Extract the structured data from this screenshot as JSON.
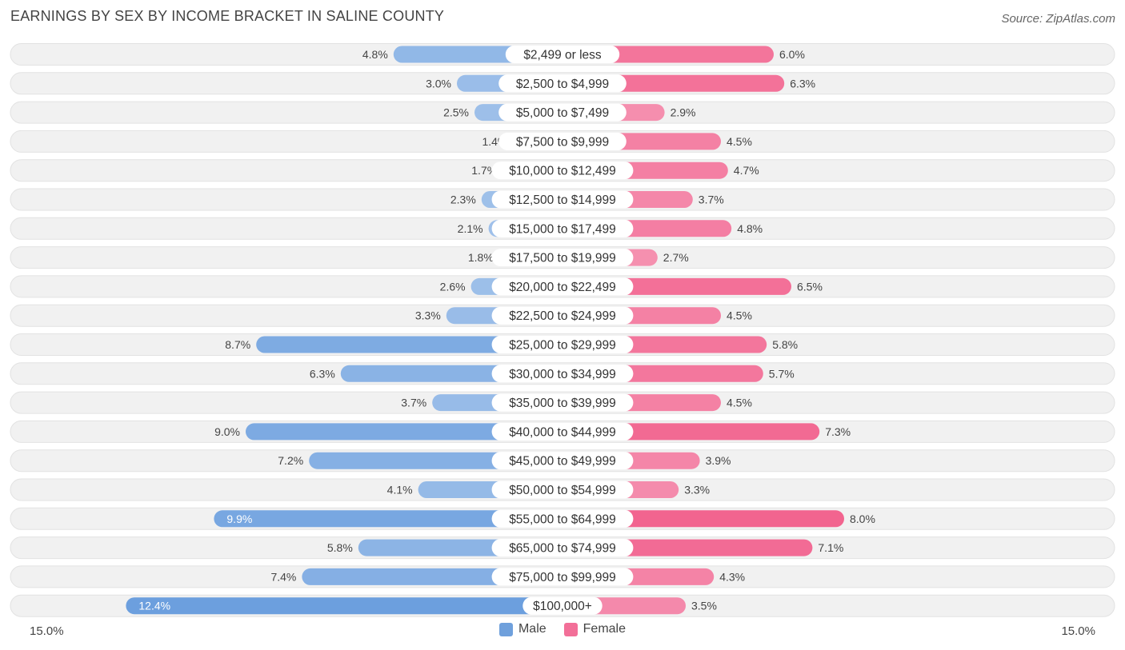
{
  "title": "EARNINGS BY SEX BY INCOME BRACKET IN SALINE COUNTY",
  "source": "Source: ZipAtlas.com",
  "colors": {
    "male": "#7aa7e0",
    "male_light": "#a9c7ec",
    "female": "#f26f98",
    "female_light": "#f6a6c0",
    "row_bg": "#eeeeee"
  },
  "chart_data": {
    "type": "bar",
    "orientation": "horizontal-diverging",
    "title": "EARNINGS BY SEX BY INCOME BRACKET IN SALINE COUNTY",
    "categories": [
      "$2,499 or less",
      "$2,500 to $4,999",
      "$5,000 to $7,499",
      "$7,500 to $9,999",
      "$10,000 to $12,499",
      "$12,500 to $14,999",
      "$15,000 to $17,499",
      "$17,500 to $19,999",
      "$20,000 to $22,499",
      "$22,500 to $24,999",
      "$25,000 to $29,999",
      "$30,000 to $34,999",
      "$35,000 to $39,999",
      "$40,000 to $44,999",
      "$45,000 to $49,999",
      "$50,000 to $54,999",
      "$55,000 to $64,999",
      "$65,000 to $74,999",
      "$75,000 to $99,999",
      "$100,000+"
    ],
    "series": [
      {
        "name": "Male",
        "values": [
          4.8,
          3.0,
          2.5,
          1.4,
          1.7,
          2.3,
          2.1,
          1.8,
          2.6,
          3.3,
          8.7,
          6.3,
          3.7,
          9.0,
          7.2,
          4.1,
          9.9,
          5.8,
          7.4,
          12.4
        ],
        "labels": [
          "4.8%",
          "3.0%",
          "2.5%",
          "1.4%",
          "1.7%",
          "2.3%",
          "2.1%",
          "1.8%",
          "2.6%",
          "3.3%",
          "8.7%",
          "6.3%",
          "3.7%",
          "9.0%",
          "7.2%",
          "4.1%",
          "9.9%",
          "5.8%",
          "7.4%",
          "12.4%"
        ]
      },
      {
        "name": "Female",
        "values": [
          6.0,
          6.3,
          2.9,
          4.5,
          4.7,
          3.7,
          4.8,
          2.7,
          6.5,
          4.5,
          5.8,
          5.7,
          4.5,
          7.3,
          3.9,
          3.3,
          8.0,
          7.1,
          4.3,
          3.5
        ],
        "labels": [
          "6.0%",
          "6.3%",
          "2.9%",
          "4.5%",
          "4.7%",
          "3.7%",
          "4.8%",
          "2.7%",
          "6.5%",
          "4.5%",
          "5.8%",
          "5.7%",
          "4.5%",
          "7.3%",
          "3.9%",
          "3.3%",
          "8.0%",
          "7.1%",
          "4.3%",
          "3.5%"
        ]
      }
    ],
    "xlim": [
      -15.0,
      15.0
    ],
    "axis_left_label": "15.0%",
    "axis_right_label": "15.0%",
    "legend": [
      "Male",
      "Female"
    ],
    "legend_position": "bottom-center"
  }
}
